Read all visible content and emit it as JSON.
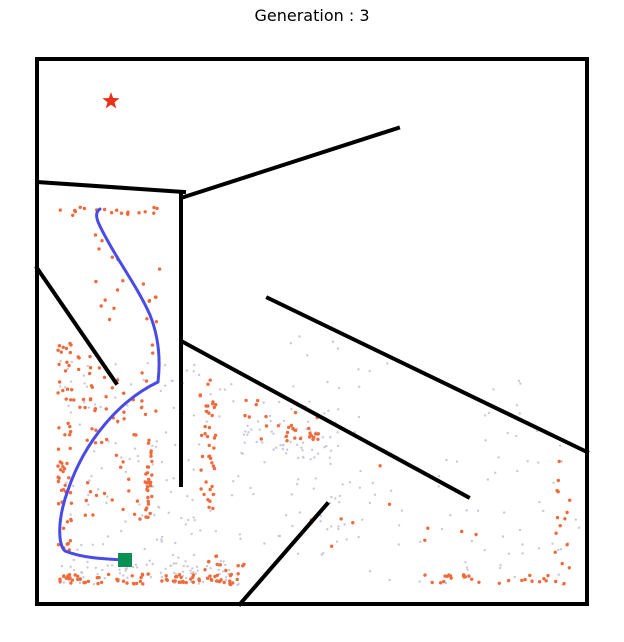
{
  "title": "Generation : 3",
  "colors": {
    "background": "#ffffff",
    "wall": "#000000",
    "goal": "#e8311a",
    "start": "#0a8f55",
    "best_path": "#4a4ae6",
    "elite_points": "#f06a3c",
    "archive_points": "#c8c8d8"
  },
  "icons": {
    "goal": "red-star-icon",
    "start": "green-square-icon"
  }
}
